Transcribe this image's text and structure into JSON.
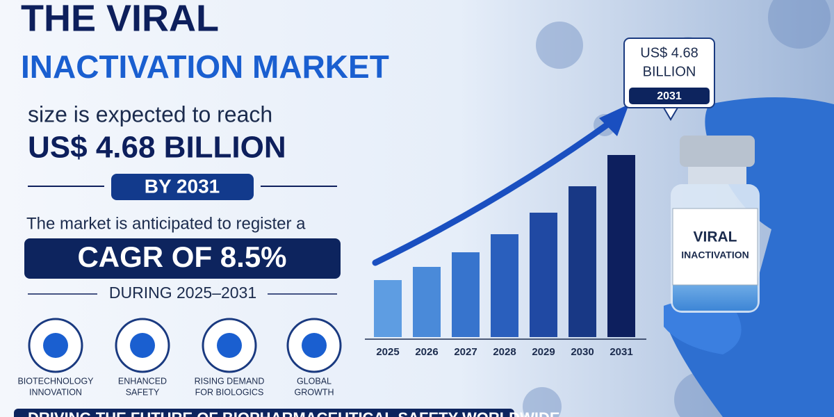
{
  "header": {
    "title_line1": "THE VIRAL",
    "title_line2": "INACTIVATION MARKET"
  },
  "headline": {
    "intro": "size is expected to reach",
    "amount": "US$ 4.68 BILLION",
    "year_badge": "BY 2031"
  },
  "cagr": {
    "intro": "The market is anticipated to register a",
    "badge": "CAGR OF 8.5%",
    "period": "DURING 2025–2031"
  },
  "features": [
    {
      "lines": [
        "BIOTECHNOLOGY",
        "INNOVATION"
      ]
    },
    {
      "lines": [
        "ENHANCED",
        "SAFETY"
      ]
    },
    {
      "lines": [
        "RISING DEMAND",
        "FOR BIOLOGICS"
      ]
    },
    {
      "lines": [
        "GLOBAL",
        "GROWTH"
      ]
    }
  ],
  "chart": {
    "categories": [
      "2025",
      "2026",
      "2027",
      "2028",
      "2029",
      "2030",
      "2031"
    ],
    "callout": {
      "lines": [
        "US$ 4.68",
        "BILLION"
      ],
      "year": "2031"
    }
  },
  "vial_label": [
    "VIRAL",
    "INACTIVATION"
  ],
  "footer": "DRIVING THE FUTURE OF BIOPHARMACEUTICAL SAFETY WORLDWIDE"
}
